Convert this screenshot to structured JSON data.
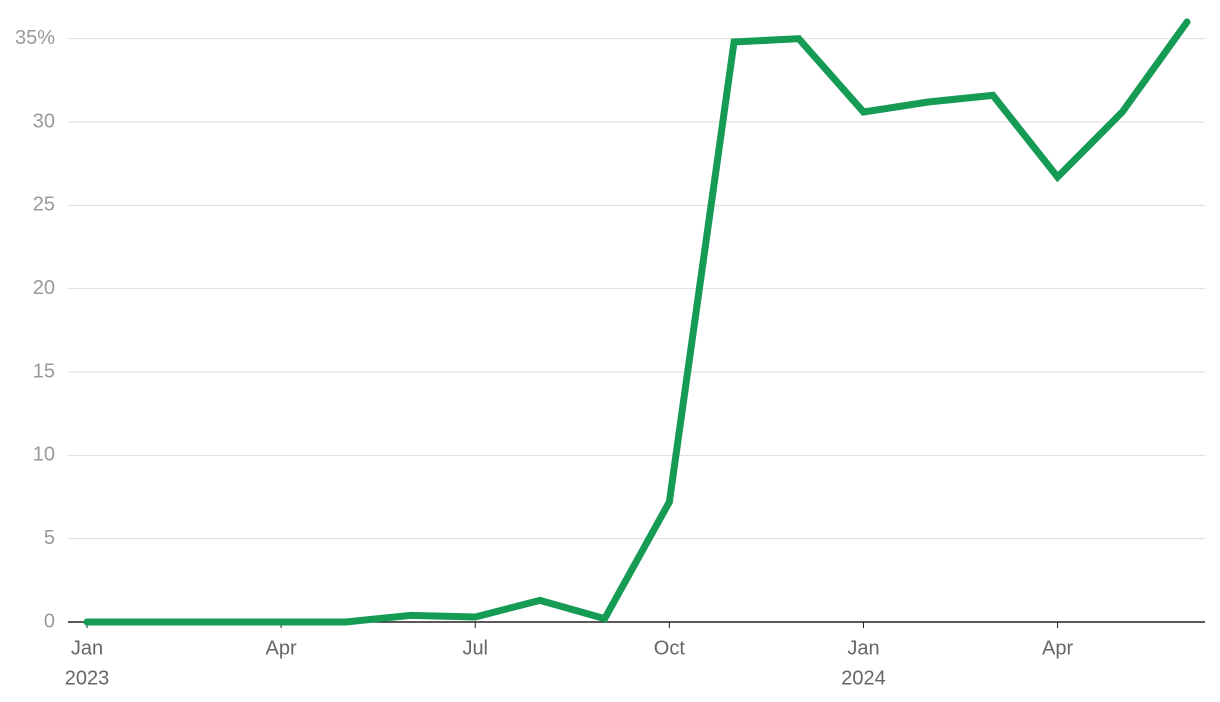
{
  "chart_data": {
    "type": "line",
    "x": [
      "2023-01",
      "2023-02",
      "2023-03",
      "2023-04",
      "2023-05",
      "2023-06",
      "2023-07",
      "2023-08",
      "2023-09",
      "2023-10",
      "2023-11",
      "2023-12",
      "2024-01",
      "2024-02",
      "2024-03",
      "2024-04",
      "2024-05",
      "2024-06"
    ],
    "series": [
      {
        "color": "#169b55",
        "values": [
          0,
          0,
          0,
          0,
          0,
          0.4,
          0.3,
          1.3,
          0.2,
          7.2,
          34.8,
          35.0,
          30.6,
          31.2,
          31.6,
          26.7,
          30.6,
          36.0
        ]
      }
    ],
    "ylim": [
      0,
      36
    ],
    "yticks": [
      0,
      5,
      10,
      15,
      20,
      25,
      30,
      {
        "value": 35,
        "label": "35%"
      }
    ],
    "xticks": [
      {
        "value": "2023-01",
        "label": "Jan",
        "year": "2023"
      },
      {
        "value": "2023-04",
        "label": "Apr"
      },
      {
        "value": "2023-07",
        "label": "Jul"
      },
      {
        "value": "2023-10",
        "label": "Oct"
      },
      {
        "value": "2024-01",
        "label": "Jan",
        "year": "2024"
      },
      {
        "value": "2024-04",
        "label": "Apr"
      }
    ],
    "grid": true
  }
}
